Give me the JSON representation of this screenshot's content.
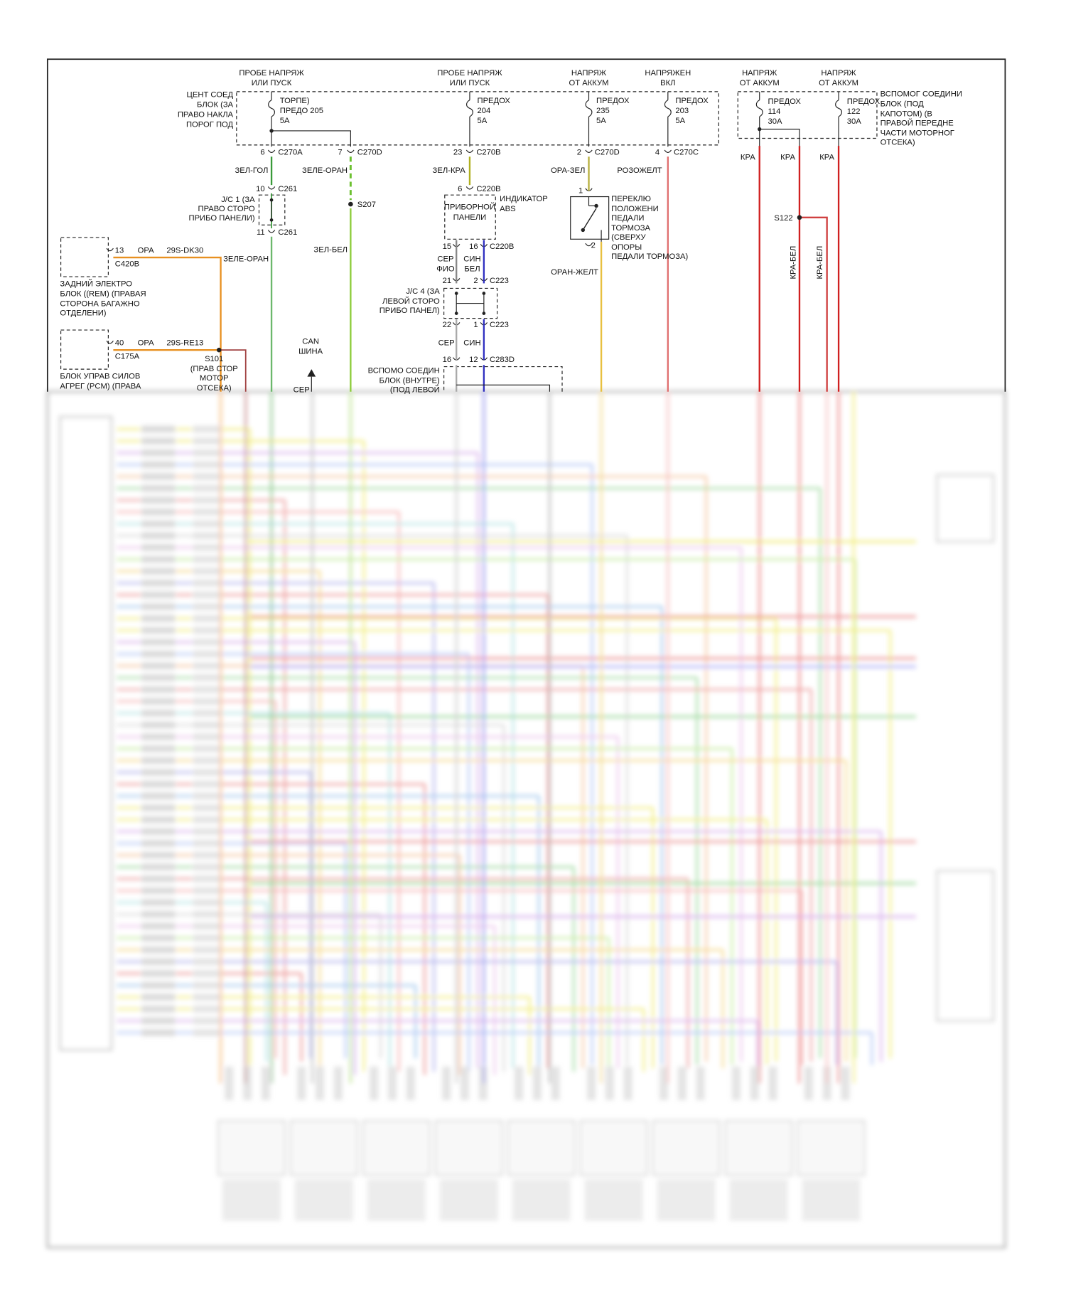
{
  "headers": [
    [
      "ПРОБЕ НАПРЯЖ",
      "ИЛИ ПУСК"
    ],
    [
      "ПРОБЕ НАПРЯЖ",
      "ИЛИ ПУСК"
    ],
    [
      "НАПРЯЖ",
      "ОТ АККУМ"
    ],
    [
      "НАПРЯЖЕН",
      "ВКЛ"
    ],
    [
      "НАПРЯЖ",
      "ОТ АККУМ"
    ],
    [
      "НАПРЯЖ",
      "ОТ АККУМ"
    ]
  ],
  "central_box": [
    "ЦЕНТ СОЕД",
    "БЛОК (ЗА",
    "ПРАВО НАКЛА",
    "ПОРОГ ПОД"
  ],
  "fuses": [
    [
      "ТОРПЕ)",
      "ПРЕДО 205",
      "5A"
    ],
    [
      "ПРЕДОХ",
      "204",
      "5A"
    ],
    [
      "ПРЕДОХ",
      "235",
      "5A"
    ],
    [
      "ПРЕДОХ",
      "203",
      "5A"
    ],
    [
      "ПРЕДОХ",
      "114",
      "30A"
    ],
    [
      "ПРЕДОХ",
      "122",
      "30A"
    ]
  ],
  "aux_box": [
    "ВСПОМОГ СОЕДИНИ",
    "БЛОК (ПОД",
    "КАПОТОМ) (В",
    "ПРАВОЙ ПЕРЕДНЕ",
    "ЧАСТИ МОТОРНОГ",
    "ОТСЕКА)"
  ],
  "connectors": [
    {
      "pin": "6",
      "id": "C270A"
    },
    {
      "pin": "7",
      "id": "C270D"
    },
    {
      "pin": "23",
      "id": "C270B"
    },
    {
      "pin": "2",
      "id": "C270D"
    },
    {
      "pin": "4",
      "id": "C270C"
    },
    {
      "pin": "10",
      "id": "C261"
    },
    {
      "pin": "11",
      "id": "C261"
    },
    {
      "pin": "6",
      "id": "C220B"
    },
    {
      "pins": [
        "15",
        "16"
      ],
      "id": "C220B"
    },
    {
      "pins": [
        "21",
        "2"
      ],
      "id": "C223"
    },
    {
      "pins": [
        "22",
        "1"
      ],
      "id": "C223"
    },
    {
      "pins": [
        "16",
        "12"
      ],
      "id": "C283D"
    }
  ],
  "wires": [
    "ЗЕЛ-ГОЛ",
    "ЗЕЛЕ-ОРАН",
    "ЗЕЛ-КРА",
    "ОРА-ЗЕЛ",
    "РОЗОЖЕЛТ",
    "КРА",
    "КРА",
    "КРА",
    "ЗЕЛ-БЕЛ",
    "ОРАН-ЖЕЛТ",
    "КРА-БЕЛ",
    "КРА-БЕЛ",
    "ЗЕЛЕ-ОРАН"
  ],
  "wire_pairs": [
    [
      "СЕР",
      "ФИО"
    ],
    [
      "СИН",
      "БЕЛ"
    ],
    [
      "СЕР"
    ],
    [
      "СИН"
    ]
  ],
  "splices": [
    "S207",
    "S122"
  ],
  "jc1": [
    "J/C 1 (ЗА",
    "ПРАВО СТОРО",
    "ПРИБО ПАНЕЛИ)"
  ],
  "jc4": [
    "J/C 4 (ЗА",
    "ЛЕВОЙ СТОРО",
    "ПРИБО ПАНЕЛ)"
  ],
  "cluster": {
    "name": [
      "ПРИБОРНОЙ",
      "ПАНЕЛИ"
    ],
    "indicator": [
      "ИНДИКАТОР",
      "ABS"
    ]
  },
  "brake_switch": {
    "pins": [
      "1",
      "2"
    ],
    "label": [
      "ПЕРЕКЛЮ",
      "ПОЛОЖЕНИ",
      "ПЕДАЛИ",
      "ТОРМОЗА",
      "(СВЕРХУ",
      "ОПОРЫ",
      "ПЕДАЛИ ТОРМОЗА)"
    ]
  },
  "rem": {
    "pin": "13",
    "wire": "ОРА",
    "circuit": "29S-DK30",
    "connector": "C420B",
    "label": [
      "ЗАДНИЙ ЭЛЕКТРО",
      "БЛОК ((REM) (ПРАВАЯ",
      "СТОРОНА БАГАЖНО",
      "ОТДЕЛЕНИ)"
    ]
  },
  "pcm": {
    "pin": "40",
    "wire": "ОРА",
    "circuit": "29S-RE13",
    "connector": "C175A",
    "label": [
      "БЛОК УПРАВ СИЛОВ",
      "АГРЕГ (PCM) (ПРАВА"
    ]
  },
  "s101": [
    "S101",
    "(ПРАВ СТОР",
    "МОТОР",
    "ОТСЕКА)"
  ],
  "can_bus": [
    "CAN",
    "ШИНА"
  ],
  "can_wire": "СЕР",
  "aux_inner_box": [
    "ВСПОМО СОЕДИН",
    "БЛОК (ВНУТРЕ)",
    "(ПОД ЛЕВОЙ"
  ]
}
